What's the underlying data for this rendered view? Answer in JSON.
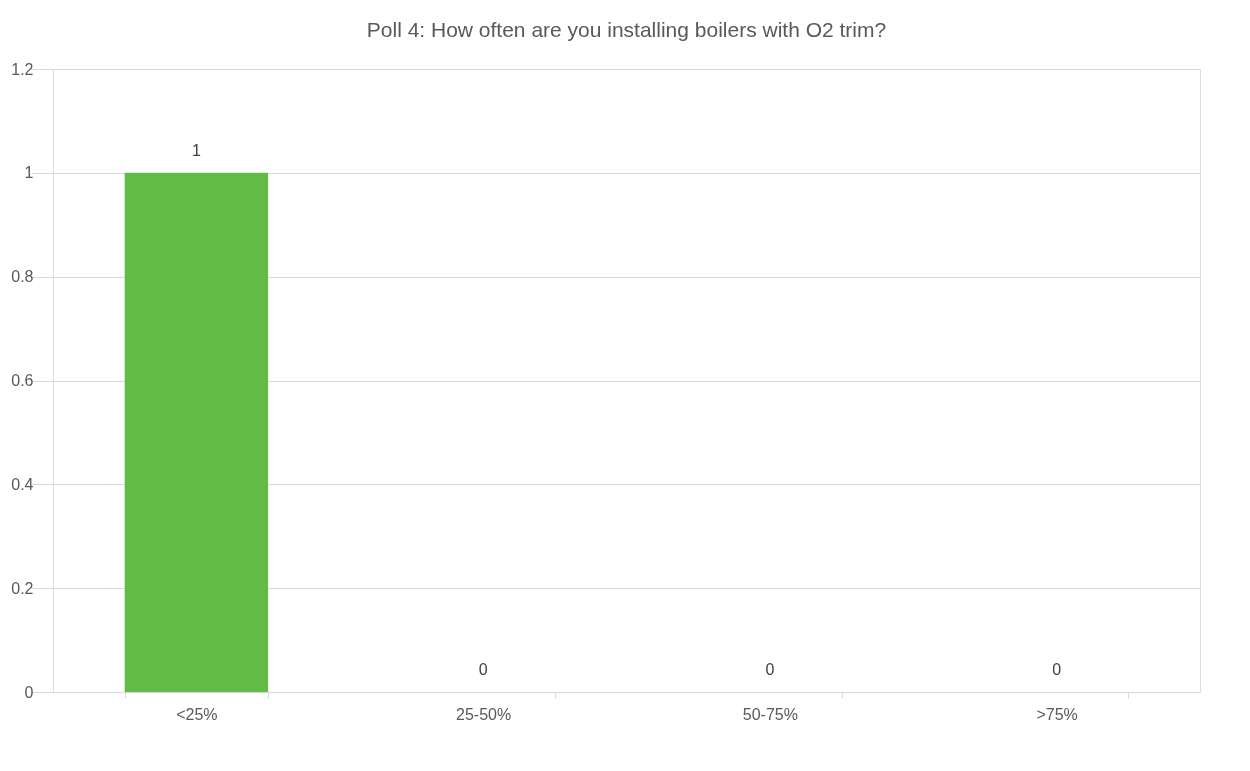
{
  "chart_data": {
    "type": "bar",
    "title": "Poll 4: How often are you installing boilers with O2 trim?",
    "categories": [
      "<25%",
      "25-50%",
      "50-75%",
      ">75%"
    ],
    "values": [
      1,
      0,
      0,
      0
    ],
    "color": "#62bb47",
    "ylim": [
      0,
      1.2
    ],
    "yticks": [
      0,
      0.2,
      0.4,
      0.6,
      0.8,
      1,
      1.2
    ],
    "grid": "y",
    "data_labels": true
  }
}
